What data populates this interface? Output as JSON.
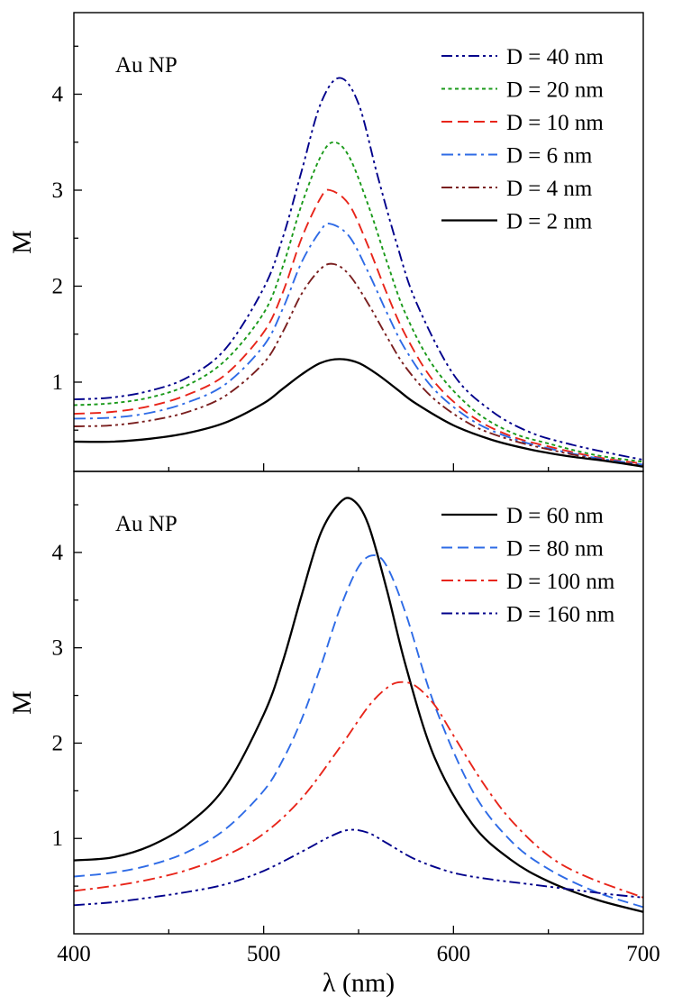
{
  "chart_data": [
    {
      "type": "line",
      "annotation": "Au NP",
      "xlabel": "",
      "ylabel": "M",
      "xlim": [
        400,
        700
      ],
      "ylim": [
        0.07,
        4.85
      ],
      "xticks": [
        400,
        500,
        600,
        700
      ],
      "yticks": [
        1,
        2,
        3,
        4
      ],
      "show_x_tick_labels": false,
      "grid": false,
      "legend_position": "top-right",
      "series": [
        {
          "name": "D = 40 nm",
          "color": "#00008B",
          "dash": "dashdotdot",
          "x": [
            400,
            420,
            440,
            460,
            480,
            500,
            510,
            520,
            530,
            540,
            550,
            560,
            570,
            580,
            600,
            620,
            640,
            660,
            680,
            700
          ],
          "y": [
            0.82,
            0.84,
            0.91,
            1.05,
            1.35,
            1.98,
            2.5,
            3.2,
            3.9,
            4.17,
            3.9,
            3.15,
            2.45,
            1.85,
            1.08,
            0.7,
            0.48,
            0.36,
            0.27,
            0.19
          ]
        },
        {
          "name": "D = 20 nm",
          "color": "#1A9A1A",
          "dash": "dotted",
          "x": [
            400,
            420,
            440,
            460,
            480,
            500,
            510,
            520,
            530,
            537,
            545,
            555,
            565,
            575,
            590,
            610,
            630,
            650,
            675,
            700
          ],
          "y": [
            0.76,
            0.78,
            0.84,
            0.97,
            1.23,
            1.72,
            2.2,
            2.85,
            3.35,
            3.5,
            3.35,
            2.85,
            2.25,
            1.7,
            1.15,
            0.72,
            0.48,
            0.36,
            0.24,
            0.17
          ]
        },
        {
          "name": "D = 10 nm",
          "color": "#E8251A",
          "dash": "dashed",
          "x": [
            400,
            420,
            440,
            460,
            480,
            500,
            510,
            520,
            530,
            535,
            545,
            555,
            565,
            575,
            590,
            610,
            630,
            650,
            675,
            700
          ],
          "y": [
            0.67,
            0.69,
            0.75,
            0.87,
            1.08,
            1.52,
            1.93,
            2.5,
            2.92,
            3.0,
            2.85,
            2.42,
            1.92,
            1.48,
            1.0,
            0.64,
            0.44,
            0.33,
            0.22,
            0.15
          ]
        },
        {
          "name": "D = 6 nm",
          "color": "#2E6BE6",
          "dash": "dashdot",
          "x": [
            400,
            420,
            440,
            460,
            480,
            500,
            510,
            520,
            530,
            535,
            545,
            555,
            565,
            575,
            590,
            610,
            630,
            650,
            675,
            700
          ],
          "y": [
            0.62,
            0.63,
            0.68,
            0.79,
            0.98,
            1.38,
            1.76,
            2.25,
            2.58,
            2.65,
            2.52,
            2.15,
            1.72,
            1.33,
            0.92,
            0.6,
            0.42,
            0.31,
            0.21,
            0.14
          ]
        },
        {
          "name": "D = 4 nm",
          "color": "#7A1F1F",
          "dash": "dashdotdot",
          "x": [
            400,
            420,
            440,
            460,
            480,
            500,
            510,
            520,
            530,
            537,
            545,
            555,
            565,
            575,
            590,
            610,
            630,
            650,
            675,
            700
          ],
          "y": [
            0.54,
            0.55,
            0.6,
            0.69,
            0.86,
            1.2,
            1.52,
            1.92,
            2.18,
            2.23,
            2.12,
            1.82,
            1.47,
            1.15,
            0.82,
            0.55,
            0.4,
            0.3,
            0.2,
            0.13
          ]
        },
        {
          "name": "D = 2 nm",
          "color": "#000000",
          "dash": "solid",
          "x": [
            400,
            420,
            440,
            460,
            480,
            500,
            510,
            520,
            530,
            540,
            550,
            560,
            570,
            580,
            600,
            620,
            640,
            660,
            680,
            700
          ],
          "y": [
            0.38,
            0.38,
            0.41,
            0.47,
            0.58,
            0.78,
            0.93,
            1.08,
            1.2,
            1.24,
            1.2,
            1.08,
            0.93,
            0.78,
            0.55,
            0.4,
            0.3,
            0.23,
            0.18,
            0.12
          ]
        }
      ]
    },
    {
      "type": "line",
      "annotation": "Au NP",
      "xlabel": "λ (nm)",
      "ylabel": "M",
      "xlim": [
        400,
        700
      ],
      "ylim": [
        0,
        4.85
      ],
      "xticks": [
        400,
        500,
        600,
        700
      ],
      "xtick_labels": [
        "400",
        "500",
        "600",
        "700"
      ],
      "yticks": [
        1,
        2,
        3,
        4
      ],
      "show_x_tick_labels": true,
      "grid": false,
      "legend_position": "top-right",
      "series": [
        {
          "name": "D = 60 nm",
          "color": "#000000",
          "dash": "solid",
          "x": [
            400,
            420,
            440,
            460,
            480,
            500,
            510,
            520,
            530,
            540,
            547,
            555,
            565,
            575,
            590,
            610,
            630,
            650,
            675,
            700
          ],
          "y": [
            0.77,
            0.8,
            0.92,
            1.15,
            1.55,
            2.3,
            2.85,
            3.55,
            4.2,
            4.52,
            4.55,
            4.3,
            3.6,
            2.8,
            1.85,
            1.15,
            0.78,
            0.55,
            0.36,
            0.23
          ]
        },
        {
          "name": "D = 80 nm",
          "color": "#2E6BE6",
          "dash": "dashed",
          "x": [
            400,
            420,
            440,
            460,
            480,
            500,
            510,
            520,
            530,
            540,
            550,
            558,
            565,
            575,
            590,
            610,
            630,
            650,
            675,
            700
          ],
          "y": [
            0.6,
            0.64,
            0.72,
            0.86,
            1.1,
            1.5,
            1.82,
            2.25,
            2.8,
            3.4,
            3.85,
            3.97,
            3.85,
            3.35,
            2.4,
            1.5,
            0.98,
            0.68,
            0.44,
            0.28
          ]
        },
        {
          "name": "D = 100 nm",
          "color": "#E8251A",
          "dash": "dashdot",
          "x": [
            400,
            420,
            440,
            460,
            480,
            500,
            520,
            540,
            555,
            565,
            572,
            580,
            590,
            600,
            615,
            630,
            650,
            670,
            700
          ],
          "y": [
            0.45,
            0.5,
            0.57,
            0.67,
            0.82,
            1.05,
            1.42,
            1.95,
            2.38,
            2.58,
            2.64,
            2.6,
            2.4,
            2.08,
            1.6,
            1.2,
            0.82,
            0.6,
            0.38
          ]
        },
        {
          "name": "D = 160 nm",
          "color": "#00008B",
          "dash": "dashdotdot",
          "x": [
            400,
            420,
            440,
            460,
            480,
            500,
            520,
            535,
            545,
            555,
            565,
            580,
            600,
            620,
            640,
            660,
            680,
            700
          ],
          "y": [
            0.3,
            0.33,
            0.38,
            0.44,
            0.52,
            0.66,
            0.86,
            1.02,
            1.09,
            1.06,
            0.95,
            0.78,
            0.64,
            0.57,
            0.52,
            0.47,
            0.42,
            0.38
          ]
        }
      ]
    }
  ]
}
